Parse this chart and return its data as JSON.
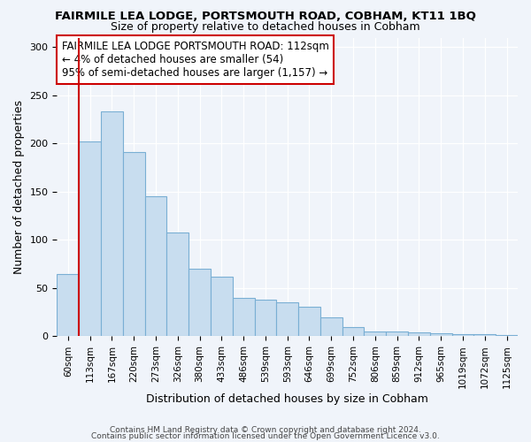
{
  "title": "FAIRMILE LEA LODGE, PORTSMOUTH ROAD, COBHAM, KT11 1BQ",
  "subtitle": "Size of property relative to detached houses in Cobham",
  "xlabel": "Distribution of detached houses by size in Cobham",
  "ylabel": "Number of detached properties",
  "bar_color": "#c8ddef",
  "bar_edge_color": "#7aafd4",
  "annotation_line_color": "#cc0000",
  "annotation_box_color": "#cc0000",
  "categories": [
    "60sqm",
    "113sqm",
    "167sqm",
    "220sqm",
    "273sqm",
    "326sqm",
    "380sqm",
    "433sqm",
    "486sqm",
    "539sqm",
    "593sqm",
    "646sqm",
    "699sqm",
    "752sqm",
    "806sqm",
    "859sqm",
    "912sqm",
    "965sqm",
    "1019sqm",
    "1072sqm",
    "1125sqm"
  ],
  "values": [
    65,
    202,
    233,
    191,
    145,
    108,
    70,
    62,
    40,
    38,
    35,
    31,
    20,
    10,
    5,
    5,
    4,
    3,
    2,
    2,
    1
  ],
  "annotation_text_line1": "FAIRMILE LEA LODGE PORTSMOUTH ROAD: 112sqm",
  "annotation_text_line2": "← 4% of detached houses are smaller (54)",
  "annotation_text_line3": "95% of semi-detached houses are larger (1,157) →",
  "ylim": [
    0,
    310
  ],
  "yticks": [
    0,
    50,
    100,
    150,
    200,
    250,
    300
  ],
  "footer_line1": "Contains HM Land Registry data © Crown copyright and database right 2024.",
  "footer_line2": "Contains public sector information licensed under the Open Government Licence v3.0.",
  "background_color": "#f0f4fa",
  "plot_bg_color": "#f0f4fa",
  "grid_color": "#ffffff",
  "title_fontsize": 9.5,
  "subtitle_fontsize": 9,
  "axis_label_fontsize": 9,
  "tick_fontsize": 8,
  "annotation_fontsize": 8.5
}
